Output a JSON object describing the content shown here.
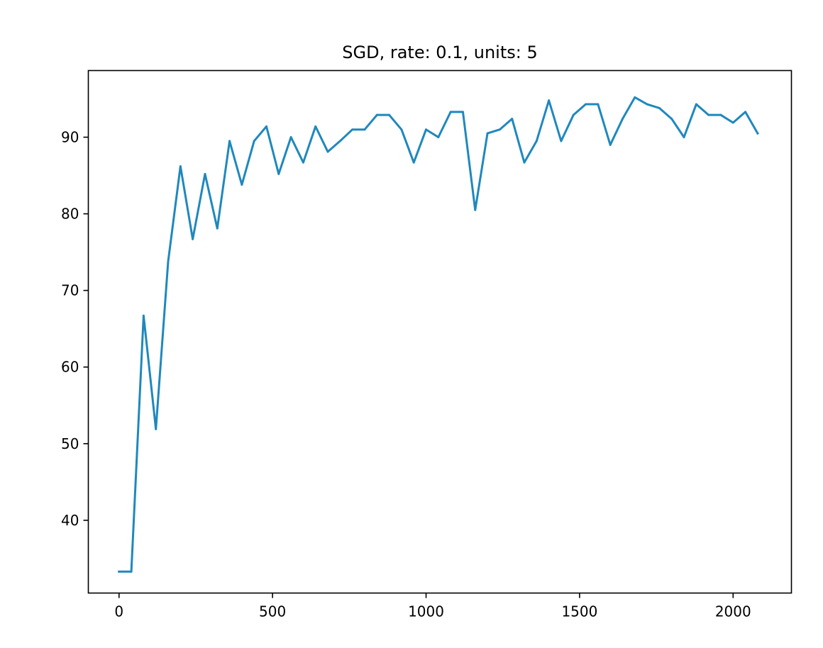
{
  "chart_data": {
    "type": "line",
    "title": "SGD, rate: 0.1, units: 5",
    "xlabel": "",
    "ylabel": "",
    "xlim": [
      -100,
      2190
    ],
    "ylim": [
      30.5,
      98.7
    ],
    "xticks": [
      0,
      500,
      1000,
      1500,
      2000
    ],
    "yticks": [
      40,
      50,
      60,
      70,
      80,
      90
    ],
    "grid": false,
    "series_color": "#1f88bd",
    "series": [
      {
        "x": [
          0,
          40,
          80,
          120,
          160,
          200,
          240,
          280,
          320,
          360,
          400,
          440,
          480,
          520,
          560,
          600,
          640,
          680,
          720,
          760,
          800,
          840,
          880,
          920,
          960,
          1000,
          1040,
          1080,
          1120,
          1160,
          1200,
          1240,
          1280,
          1320,
          1360,
          1400,
          1440,
          1480,
          1520,
          1560,
          1600,
          1640,
          1680,
          1720,
          1760,
          1800,
          1840,
          1880,
          1920,
          1960,
          2000,
          2040,
          2080
        ],
        "y": [
          33.3,
          33.3,
          66.7,
          51.9,
          73.8,
          86.2,
          76.7,
          85.2,
          78.1,
          89.5,
          83.8,
          89.5,
          91.4,
          85.2,
          90.0,
          86.7,
          91.4,
          88.1,
          89.5,
          91.0,
          91.0,
          92.9,
          92.9,
          91.0,
          86.7,
          91.0,
          90.0,
          93.3,
          93.3,
          80.5,
          90.5,
          91.0,
          92.4,
          86.7,
          89.5,
          94.8,
          89.5,
          92.9,
          94.3,
          94.3,
          89.0,
          92.4,
          95.2,
          94.3,
          93.8,
          92.4,
          90.0,
          94.3,
          92.9,
          92.9,
          91.9,
          93.3,
          90.5
        ]
      }
    ]
  }
}
